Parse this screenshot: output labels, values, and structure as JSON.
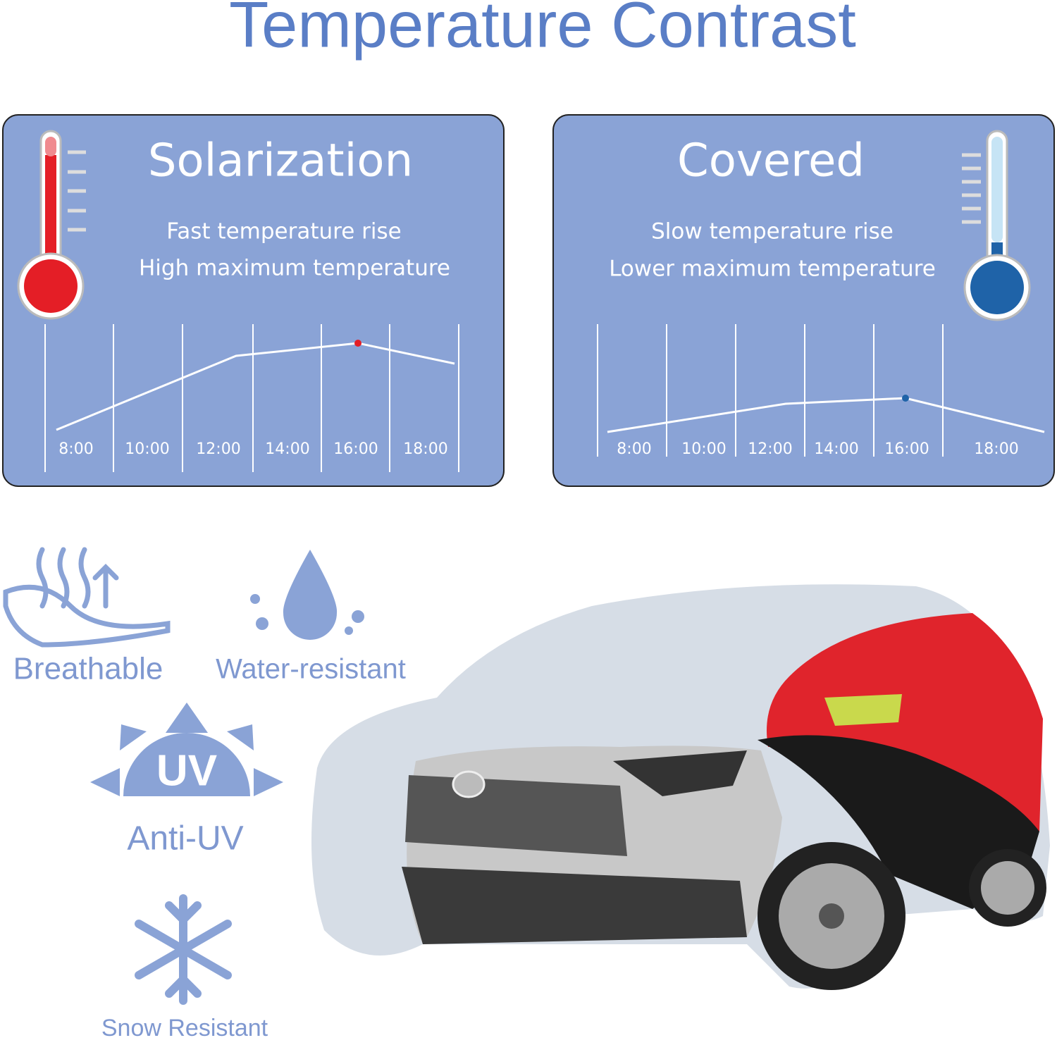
{
  "title": "Temperature Contrast",
  "panels": [
    {
      "title": "Solarization",
      "lines": [
        "Fast temperature rise",
        "High maximum temperature"
      ],
      "times": [
        "8:00",
        "10:00",
        "12:00",
        "14:00",
        "16:00",
        "18:00"
      ]
    },
    {
      "title": "Covered",
      "lines": [
        "Slow temperature rise",
        "Lower maximum temperature"
      ],
      "times": [
        "8:00",
        "10:00",
        "12:00",
        "14:00",
        "16:00",
        "18:00"
      ]
    }
  ],
  "features": [
    "Breathable",
    "Water-resistant",
    "Anti-UV",
    "Snow Resistant"
  ]
}
